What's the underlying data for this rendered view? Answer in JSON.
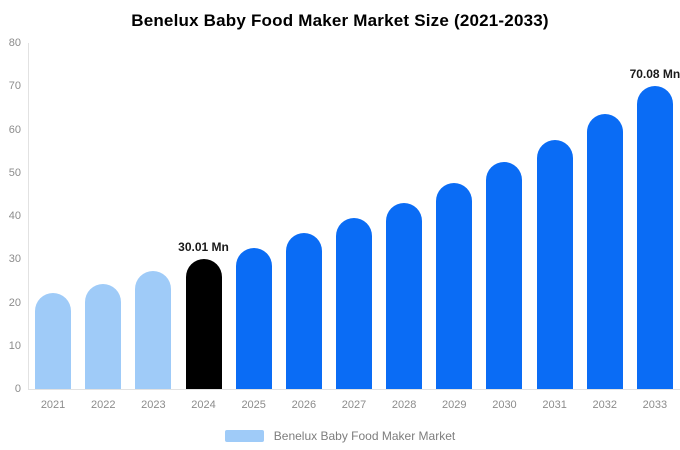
{
  "chart_data": {
    "type": "bar",
    "title": "Benelux Baby Food Maker Market Size (2021-2033)",
    "unit": "Mn",
    "categories": [
      "2021",
      "2022",
      "2023",
      "2024",
      "2025",
      "2026",
      "2027",
      "2028",
      "2029",
      "2030",
      "2031",
      "2032",
      "2033"
    ],
    "values": [
      22.1,
      24.3,
      27.2,
      30.01,
      32.6,
      36.1,
      39.5,
      43.0,
      47.6,
      52.5,
      57.6,
      63.6,
      70.08
    ],
    "bar_color_keys": [
      "light",
      "light",
      "light",
      "black",
      "blue",
      "blue",
      "blue",
      "blue",
      "blue",
      "blue",
      "blue",
      "blue",
      "blue"
    ],
    "palette": {
      "light": "#9FCBF8",
      "blue": "#0A6CF5",
      "black": "#000000"
    },
    "ylim": [
      0,
      80
    ],
    "yticks": [
      0,
      10,
      20,
      30,
      40,
      50,
      60,
      70,
      80
    ],
    "grid": false,
    "annotations": [
      {
        "category": "2024",
        "text": "30.01 Mn"
      },
      {
        "category": "2033",
        "text": "70.08 Mn"
      }
    ],
    "legend": {
      "label": "Benelux Baby Food Maker Market",
      "position": "bottom",
      "swatch_color": "#9FCBF8"
    },
    "colors": {
      "axis_line": "#E2E2E2",
      "tick_label": "#8C8C8C",
      "legend_label": "#7D7D7D",
      "annotation": "#1A1A1A",
      "background": "#FFFFFF"
    }
  }
}
